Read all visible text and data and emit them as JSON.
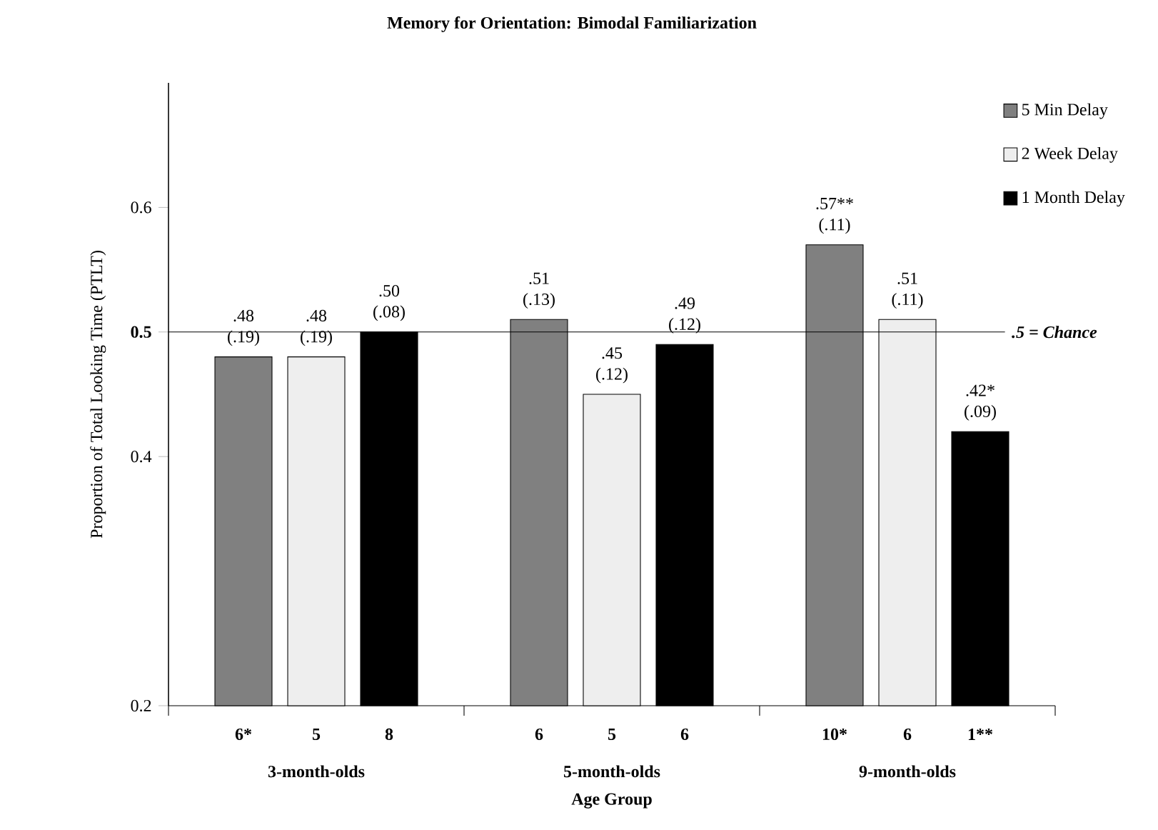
{
  "chart_data": {
    "type": "bar",
    "title": "Memory for Orientation: Bimodal Familiarization",
    "xlabel": "Age Group",
    "ylabel": "Proportion of Total Looking Time (PTLT)",
    "categories": [
      "3-month-olds",
      "5-month-olds",
      "9-month-olds"
    ],
    "series": [
      {
        "name": "5 Min Delay",
        "color": "#808080",
        "values": [
          0.48,
          0.51,
          0.57
        ],
        "value_labels": [
          ".48 (.19)",
          ".51 (.13)",
          ".57** (.11)"
        ]
      },
      {
        "name": "2 Week Delay",
        "color": "#eeeeee",
        "values": [
          0.48,
          0.45,
          0.51
        ],
        "value_labels": [
          ".48 (.19)",
          ".45 (.12)",
          ".51 (.11)"
        ]
      },
      {
        "name": "1 Month Delay",
        "color": "#000000",
        "values": [
          0.5,
          0.49,
          0.42
        ],
        "value_labels": [
          ".50 (.08)",
          ".49 (.12)",
          ".42* (.09)"
        ]
      }
    ],
    "ylim": [
      0.2,
      0.7
    ],
    "yticks": [
      0.2,
      0.4,
      0.5,
      0.6
    ],
    "ref_lines": [
      {
        "axis": "y",
        "value": 0.5,
        "label": ".5 = *Chance*"
      }
    ],
    "annotations": [
      "6*",
      "5",
      "8",
      "6",
      "5",
      "6",
      "10*",
      "6",
      "1**"
    ],
    "legend": "top right",
    "grid": false
  }
}
